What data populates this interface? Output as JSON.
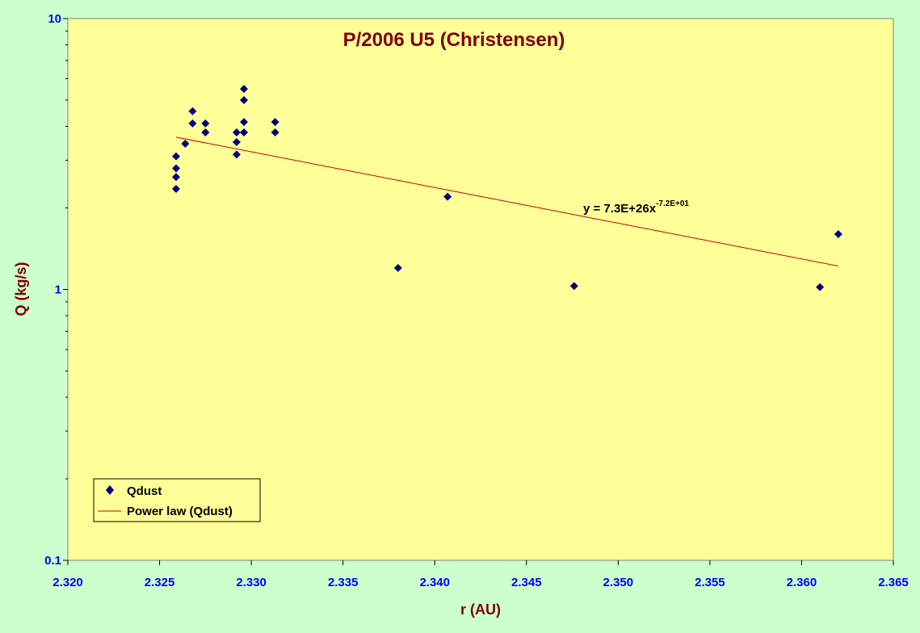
{
  "chart_data": {
    "type": "scatter",
    "title": "P/2006 U5 (Christensen)",
    "xlabel": "r (AU)",
    "ylabel": "Q (kg/s)",
    "xlim": [
      2.32,
      2.365
    ],
    "ylim": [
      0.1,
      10
    ],
    "yscale": "log",
    "x_ticks": [
      "2.320",
      "2.325",
      "2.330",
      "2.335",
      "2.340",
      "2.345",
      "2.350",
      "2.355",
      "2.360",
      "2.365"
    ],
    "y_ticks": [
      "0.1",
      "1",
      "10"
    ],
    "grid": false,
    "legend_position": "bottom-left",
    "series": [
      {
        "name": "Qdust",
        "marker": "diamond",
        "color": "#000080",
        "points": [
          {
            "x": 2.3259,
            "y": 3.1
          },
          {
            "x": 2.3259,
            "y": 2.8
          },
          {
            "x": 2.3259,
            "y": 2.6
          },
          {
            "x": 2.3259,
            "y": 2.35
          },
          {
            "x": 2.3264,
            "y": 3.45
          },
          {
            "x": 2.3268,
            "y": 4.55
          },
          {
            "x": 2.3268,
            "y": 4.1
          },
          {
            "x": 2.3275,
            "y": 4.1
          },
          {
            "x": 2.3275,
            "y": 3.8
          },
          {
            "x": 2.3292,
            "y": 3.8
          },
          {
            "x": 2.3292,
            "y": 3.5
          },
          {
            "x": 2.3292,
            "y": 3.15
          },
          {
            "x": 2.3296,
            "y": 5.5
          },
          {
            "x": 2.3296,
            "y": 5.0
          },
          {
            "x": 2.3296,
            "y": 4.15
          },
          {
            "x": 2.3296,
            "y": 3.8
          },
          {
            "x": 2.3313,
            "y": 4.15
          },
          {
            "x": 2.3313,
            "y": 3.8
          },
          {
            "x": 2.338,
            "y": 1.2
          },
          {
            "x": 2.3407,
            "y": 2.2
          },
          {
            "x": 2.3476,
            "y": 1.03
          },
          {
            "x": 2.361,
            "y": 1.02
          },
          {
            "x": 2.362,
            "y": 1.6
          }
        ]
      },
      {
        "name": "Power law (Qdust)",
        "line": true,
        "color": "#cc0000",
        "points": [
          {
            "x": 2.3259,
            "y": 3.65
          },
          {
            "x": 2.362,
            "y": 1.22
          }
        ]
      }
    ],
    "annotations": [
      {
        "text_main": "y = 7.3E+26x",
        "text_sup": "-7.2E+01"
      }
    ]
  },
  "colors": {
    "plot_background": "#ffff99",
    "page_background": "#ccffcc",
    "title": "#800000",
    "axis_label": "#800000",
    "tick_label": "#0000ff"
  }
}
